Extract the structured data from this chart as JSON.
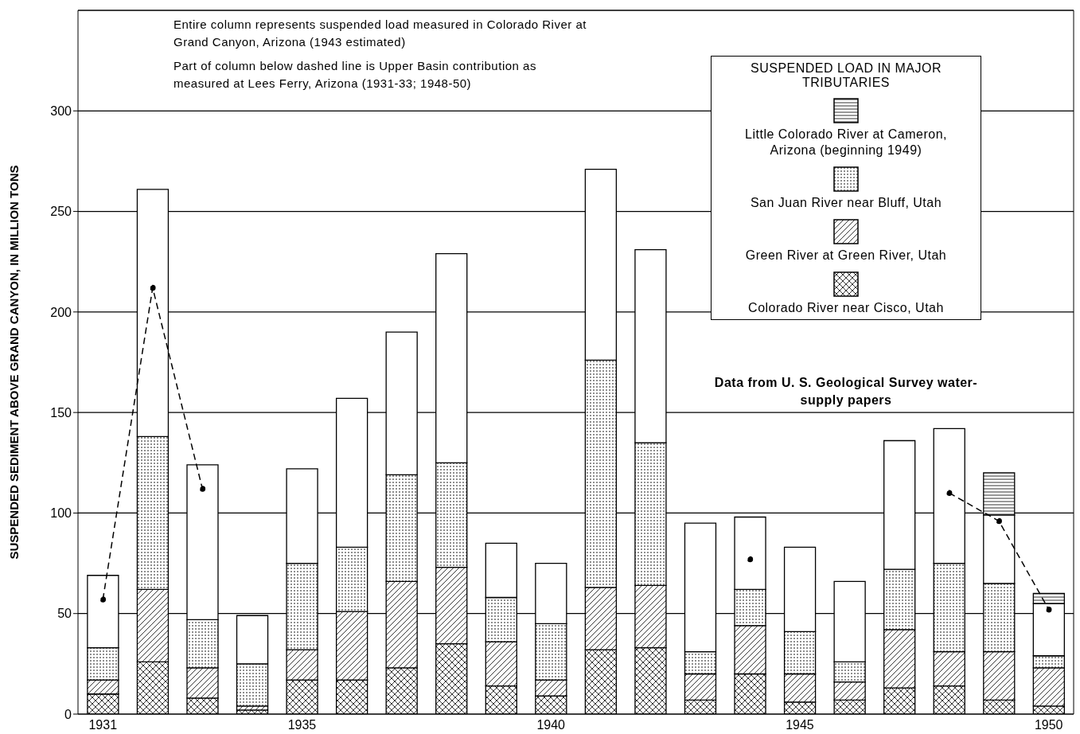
{
  "chart_data": {
    "type": "bar",
    "stacked": true,
    "ylabel": "SUSPENDED SEDIMENT ABOVE GRAND CANYON, IN MILLION TONS",
    "legend_title": "SUSPENDED LOAD IN MAJOR TRIBUTARIES",
    "annotations": [
      "Entire column represents suspended load measured in Colorado River at Grand Canyon, Arizona (1943 estimated)",
      "Part of column below dashed line is Upper Basin contribution as measured at Lees Ferry, Arizona (1931-33; 1948-50)",
      "Data from U. S. Geological Survey water-supply papers"
    ],
    "categories": [
      "1931",
      null,
      null,
      null,
      "1935",
      null,
      null,
      null,
      null,
      "1940",
      null,
      null,
      null,
      null,
      "1945",
      null,
      null,
      null,
      null,
      "1950"
    ],
    "series": [
      {
        "name": "Colorado River near Cisco, Utah",
        "color": "#000000",
        "values": [
          10,
          26,
          8,
          2,
          17,
          17,
          23,
          35,
          14,
          9,
          32,
          33,
          7,
          20,
          6,
          7,
          13,
          14,
          7,
          4
        ]
      },
      {
        "name": "Green River at Green River, Utah",
        "color": "#000000",
        "values": [
          7,
          36,
          15,
          2,
          15,
          34,
          43,
          38,
          22,
          8,
          31,
          31,
          13,
          24,
          14,
          9,
          29,
          17,
          24,
          19
        ]
      },
      {
        "name": "San Juan River near Bluff, Utah",
        "color": "#000000",
        "values": [
          16,
          76,
          24,
          21,
          43,
          32,
          53,
          52,
          22,
          28,
          113,
          71,
          11,
          18,
          21,
          10,
          30,
          44,
          34,
          6
        ]
      },
      {
        "color": "#ffffff",
        "values": [
          36,
          123,
          77,
          24,
          47,
          74,
          71,
          104,
          27,
          30,
          95,
          96,
          64,
          36,
          42,
          40,
          64,
          67,
          34,
          26
        ]
      },
      {
        "name": "Little Colorado River at Cameron, Arizona (beginning 1949)",
        "color": "#000000",
        "values": [
          null,
          null,
          null,
          null,
          null,
          null,
          null,
          null,
          null,
          null,
          null,
          null,
          null,
          null,
          null,
          null,
          null,
          null,
          21,
          5
        ]
      },
      {
        "type": "line",
        "color": "#000000",
        "line_style": "dashed",
        "marker": "circle",
        "values": [
          57,
          212,
          112,
          null,
          null,
          null,
          null,
          null,
          null,
          null,
          null,
          null,
          null,
          77,
          null,
          null,
          null,
          110,
          96,
          52
        ]
      }
    ],
    "ylim": [
      0,
      350
    ],
    "yticks": [
      0,
      50,
      100,
      150,
      200,
      250,
      300
    ],
    "grid": "y",
    "legend": "top right"
  }
}
